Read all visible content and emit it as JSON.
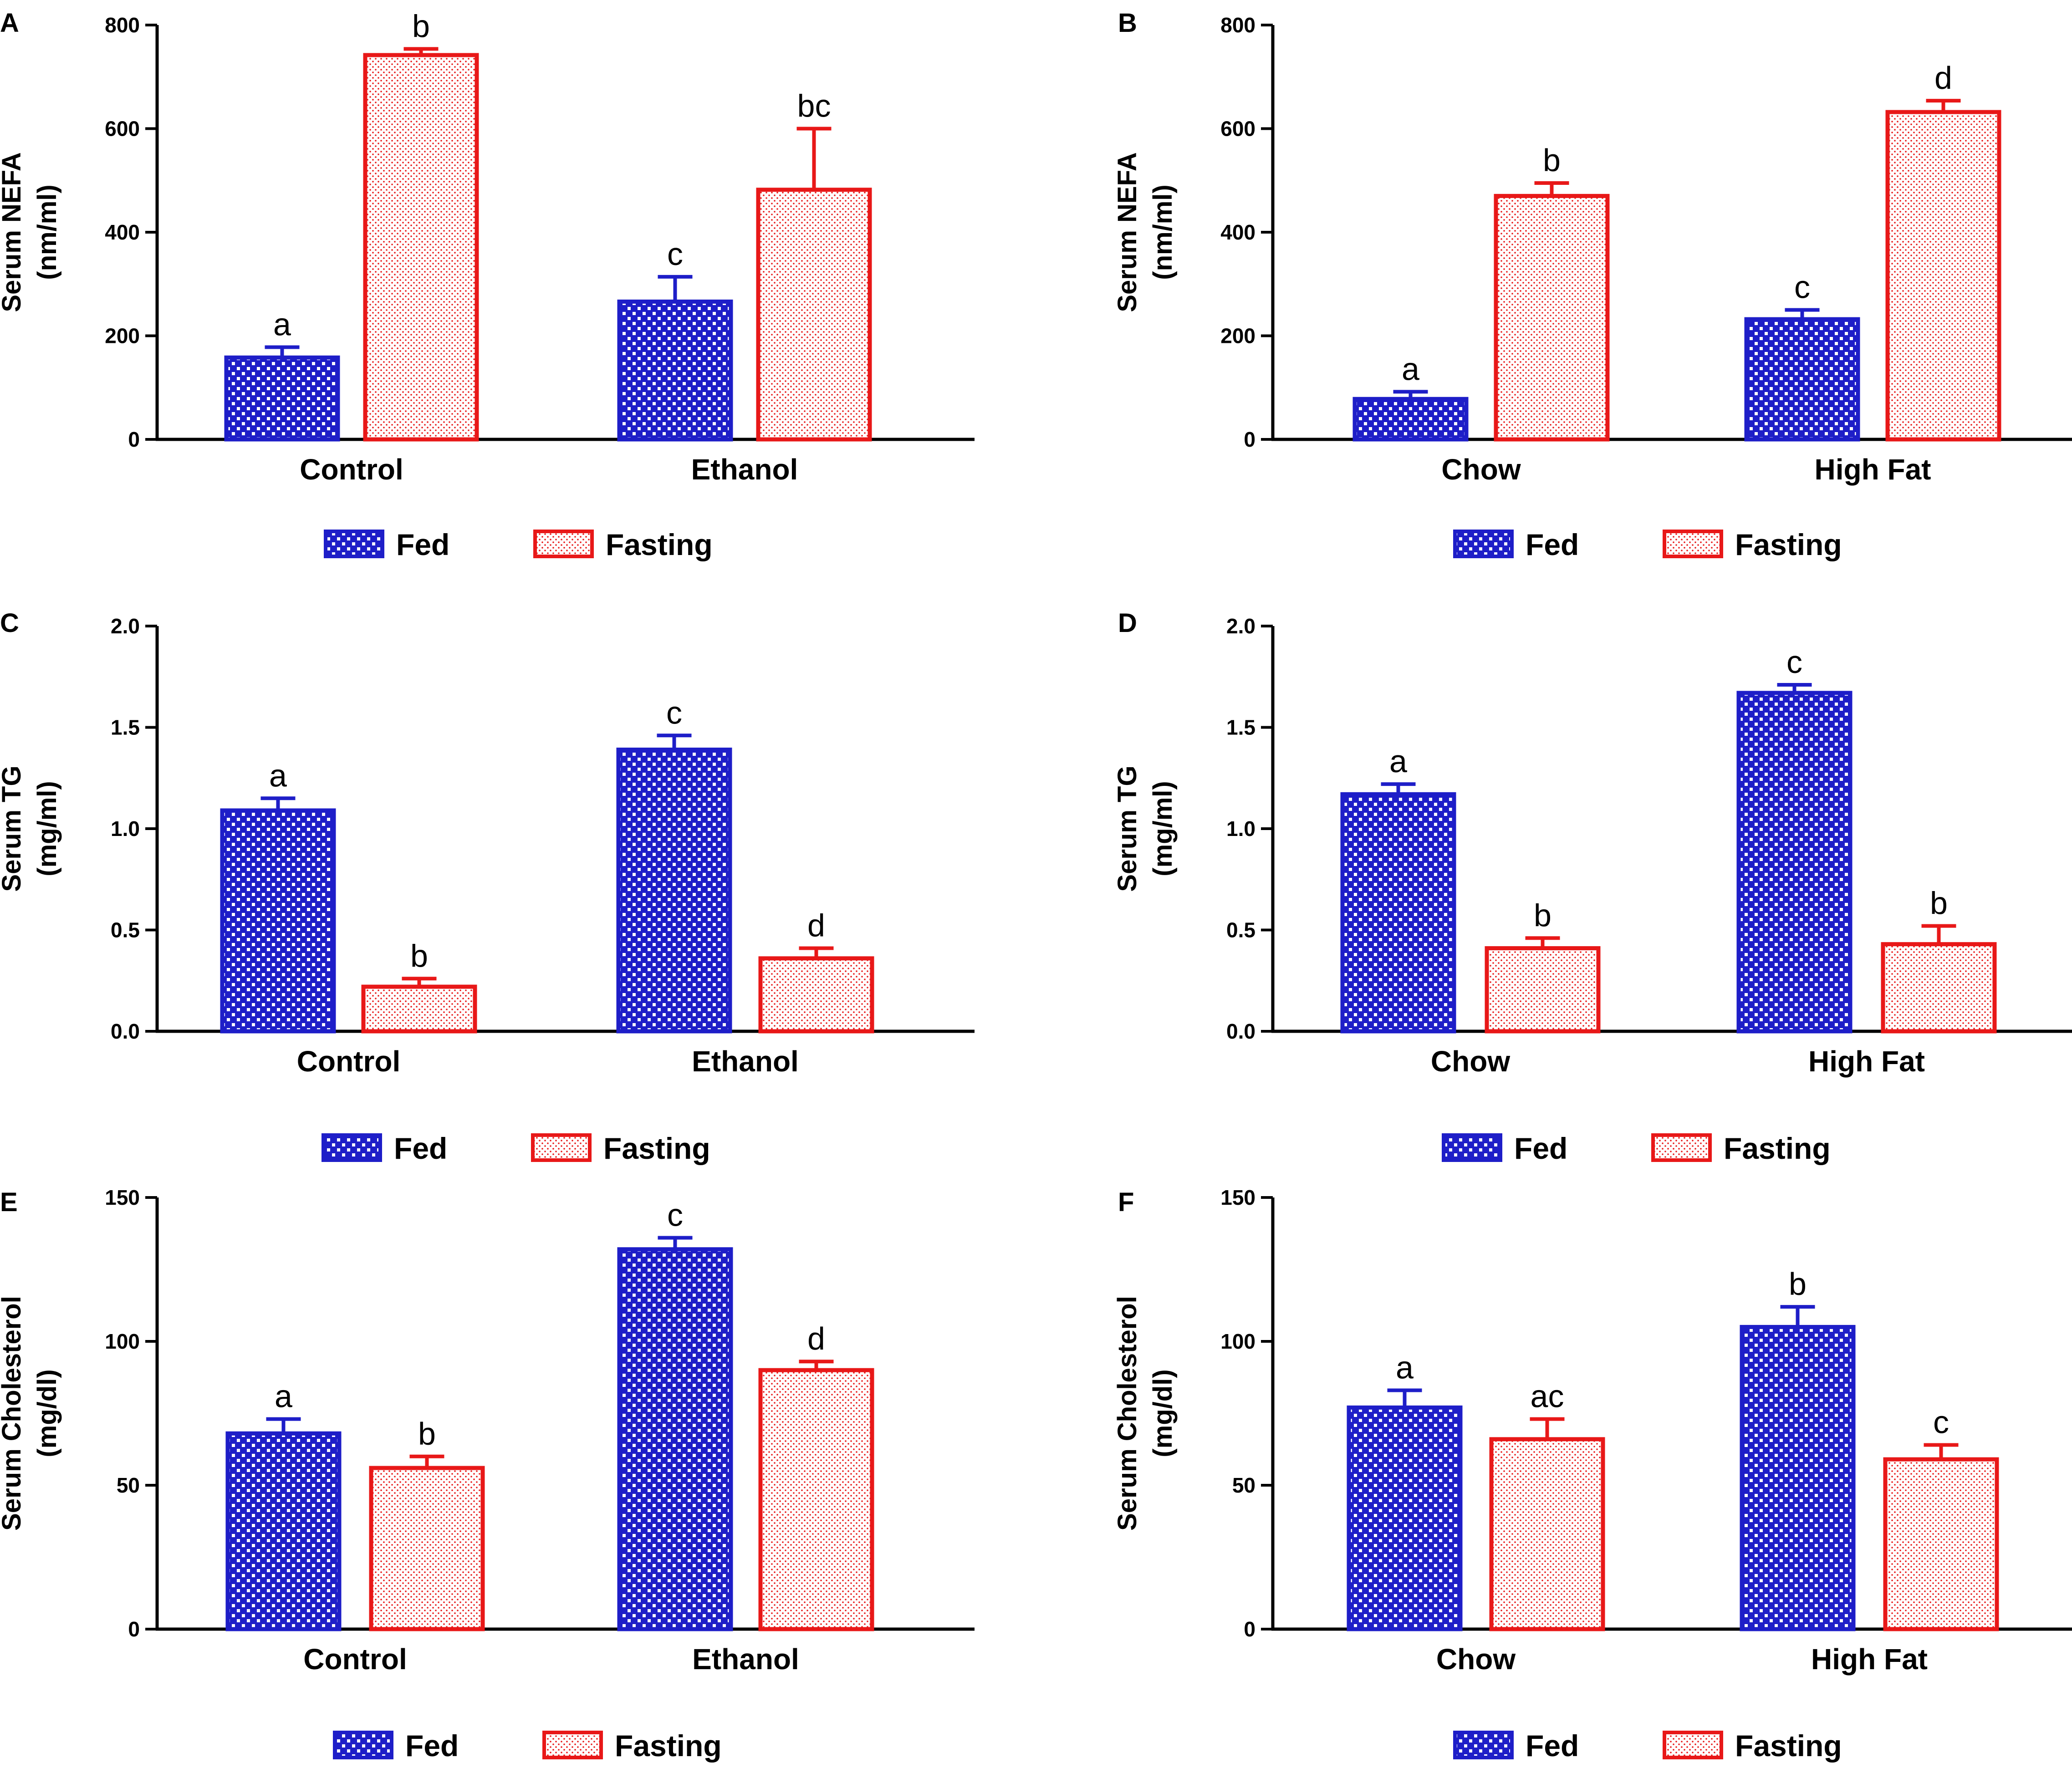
{
  "colors": {
    "fed": "#1e1ec8",
    "fasting": "#e81818",
    "axis": "#000000"
  },
  "legend": {
    "fed": "Fed",
    "fasting": "Fasting"
  },
  "chart_data": [
    {
      "panel": "A",
      "type": "bar",
      "ylabel_line1": "Serum NEFA",
      "ylabel_line2": "(nm/ml)",
      "ylim": [
        0,
        800
      ],
      "yticks": [
        {
          "v": 0,
          "label": "0"
        },
        {
          "v": 200,
          "label": "200"
        },
        {
          "v": 400,
          "label": "400"
        },
        {
          "v": 600,
          "label": "600"
        },
        {
          "v": 800,
          "label": "800"
        }
      ],
      "categories": [
        "Control",
        "Ethanol"
      ],
      "series": [
        {
          "name": "Fed",
          "values": [
            158,
            266
          ],
          "errors": [
            20,
            48
          ],
          "labels": [
            "a",
            "c"
          ]
        },
        {
          "name": "Fasting",
          "values": [
            742,
            482
          ],
          "errors": [
            12,
            118
          ],
          "labels": [
            "b",
            "bc"
          ]
        }
      ]
    },
    {
      "panel": "B",
      "type": "bar",
      "ylabel_line1": "Serum NEFA",
      "ylabel_line2": "(nm/ml)",
      "ylim": [
        0,
        800
      ],
      "yticks": [
        {
          "v": 0,
          "label": "0"
        },
        {
          "v": 200,
          "label": "200"
        },
        {
          "v": 400,
          "label": "400"
        },
        {
          "v": 600,
          "label": "600"
        },
        {
          "v": 800,
          "label": "800"
        }
      ],
      "categories": [
        "Chow",
        "High Fat"
      ],
      "series": [
        {
          "name": "Fed",
          "values": [
            78,
            232
          ],
          "errors": [
            14,
            18
          ],
          "labels": [
            "a",
            "c"
          ]
        },
        {
          "name": "Fasting",
          "values": [
            470,
            632
          ],
          "errors": [
            25,
            22
          ],
          "labels": [
            "b",
            "d"
          ]
        }
      ]
    },
    {
      "panel": "C",
      "type": "bar",
      "ylabel_line1": "Serum TG",
      "ylabel_line2": "(mg/ml)",
      "ylim": [
        0,
        2.0
      ],
      "yticks": [
        {
          "v": 0,
          "label": "0.0"
        },
        {
          "v": 0.5,
          "label": "0.5"
        },
        {
          "v": 1.0,
          "label": "1.0"
        },
        {
          "v": 1.5,
          "label": "1.5"
        },
        {
          "v": 2.0,
          "label": "2.0"
        }
      ],
      "categories": [
        "Control",
        "Ethanol"
      ],
      "series": [
        {
          "name": "Fed",
          "values": [
            1.09,
            1.39
          ],
          "errors": [
            0.06,
            0.07
          ],
          "labels": [
            "a",
            "c"
          ]
        },
        {
          "name": "Fasting",
          "values": [
            0.22,
            0.36
          ],
          "errors": [
            0.04,
            0.05
          ],
          "labels": [
            "b",
            "d"
          ]
        }
      ]
    },
    {
      "panel": "D",
      "type": "bar",
      "ylabel_line1": "Serum TG",
      "ylabel_line2": "(mg/ml)",
      "ylim": [
        0,
        2.0
      ],
      "yticks": [
        {
          "v": 0,
          "label": "0.0"
        },
        {
          "v": 0.5,
          "label": "0.5"
        },
        {
          "v": 1.0,
          "label": "1.0"
        },
        {
          "v": 1.5,
          "label": "1.5"
        },
        {
          "v": 2.0,
          "label": "2.0"
        }
      ],
      "categories": [
        "Chow",
        "High Fat"
      ],
      "series": [
        {
          "name": "Fed",
          "values": [
            1.17,
            1.67
          ],
          "errors": [
            0.05,
            0.04
          ],
          "labels": [
            "a",
            "c"
          ]
        },
        {
          "name": "Fasting",
          "values": [
            0.41,
            0.43
          ],
          "errors": [
            0.05,
            0.09
          ],
          "labels": [
            "b",
            "b"
          ]
        }
      ]
    },
    {
      "panel": "E",
      "type": "bar",
      "ylabel_line1": "Serum Cholesterol",
      "ylabel_line2": "(mg/dl)",
      "ylim": [
        0,
        150
      ],
      "yticks": [
        {
          "v": 0,
          "label": "0"
        },
        {
          "v": 50,
          "label": "50"
        },
        {
          "v": 100,
          "label": "100"
        },
        {
          "v": 150,
          "label": "150"
        }
      ],
      "categories": [
        "Control",
        "Ethanol"
      ],
      "series": [
        {
          "name": "Fed",
          "values": [
            68,
            132
          ],
          "errors": [
            5,
            4
          ],
          "labels": [
            "a",
            "c"
          ]
        },
        {
          "name": "Fasting",
          "values": [
            56,
            90
          ],
          "errors": [
            4,
            3
          ],
          "labels": [
            "b",
            "d"
          ]
        }
      ]
    },
    {
      "panel": "F",
      "type": "bar",
      "ylabel_line1": "Serum Cholesterol",
      "ylabel_line2": "(mg/dl)",
      "ylim": [
        0,
        150
      ],
      "yticks": [
        {
          "v": 0,
          "label": "0"
        },
        {
          "v": 50,
          "label": "50"
        },
        {
          "v": 100,
          "label": "100"
        },
        {
          "v": 150,
          "label": "150"
        }
      ],
      "categories": [
        "Chow",
        "High Fat"
      ],
      "series": [
        {
          "name": "Fed",
          "values": [
            77,
            105
          ],
          "errors": [
            6,
            7
          ],
          "labels": [
            "a",
            "b"
          ]
        },
        {
          "name": "Fasting",
          "values": [
            66,
            59
          ],
          "errors": [
            7,
            5
          ],
          "labels": [
            "ac",
            "c"
          ]
        }
      ]
    }
  ]
}
